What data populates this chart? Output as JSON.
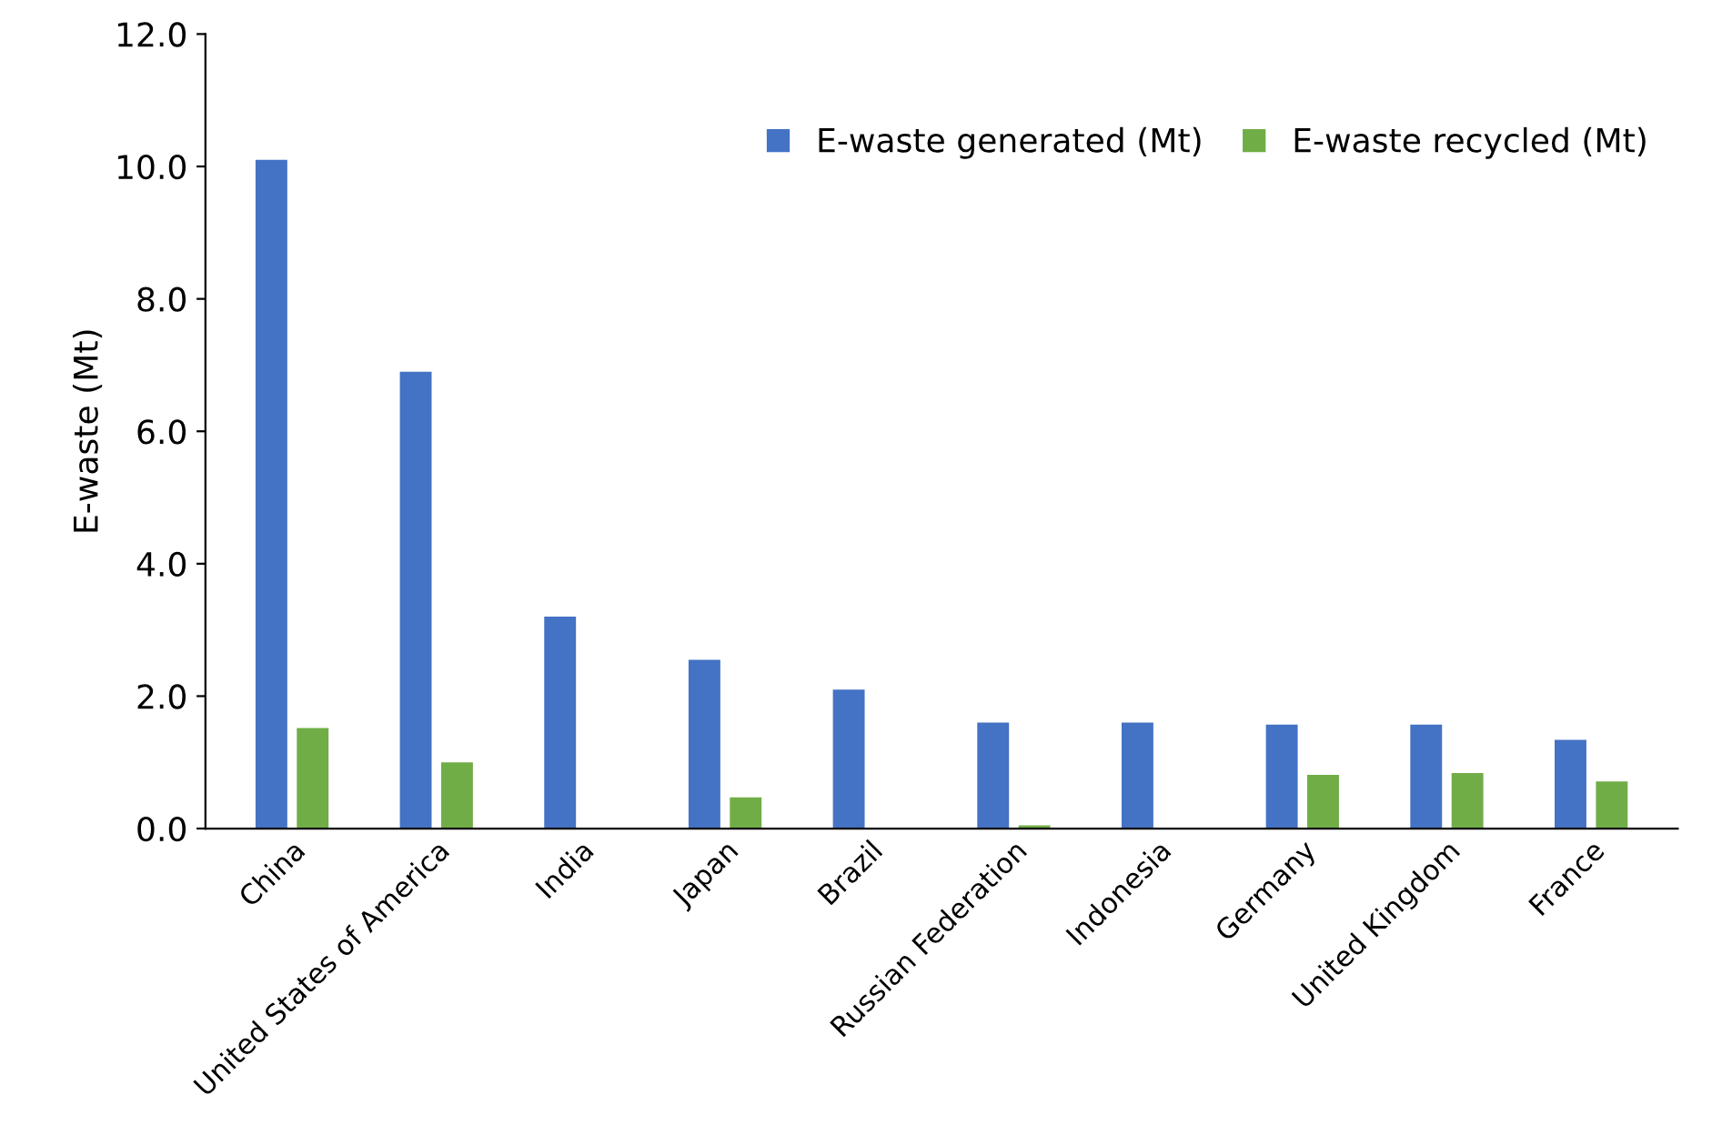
{
  "chart_data": {
    "type": "bar",
    "ylabel": "E-waste (Mt)",
    "categories": [
      "China",
      "United States of America",
      "India",
      "Japan",
      "Brazil",
      "Russian Federation",
      "Indonesia",
      "Germany",
      "United Kingdom",
      "France"
    ],
    "series": [
      {
        "name": "E-waste generated (Mt)",
        "color": "#4472c4",
        "values": [
          10.1,
          6.9,
          3.2,
          2.55,
          2.1,
          1.6,
          1.6,
          1.57,
          1.57,
          1.34
        ]
      },
      {
        "name": "E-waste recycled (Mt)",
        "color": "#70ad47",
        "values": [
          1.52,
          1.0,
          null,
          0.47,
          null,
          0.05,
          null,
          0.81,
          0.84,
          0.71
        ]
      }
    ],
    "ylim": [
      0,
      12
    ],
    "yticks": [
      {
        "value": 0,
        "label": "0.0"
      },
      {
        "value": 2,
        "label": "2.0"
      },
      {
        "value": 4,
        "label": "4.0"
      },
      {
        "value": 6,
        "label": "6.0"
      },
      {
        "value": 8,
        "label": "8.0"
      },
      {
        "value": 10,
        "label": "10.0"
      },
      {
        "value": 12,
        "label": "12.0"
      }
    ],
    "grid": false,
    "legend": "top right"
  }
}
